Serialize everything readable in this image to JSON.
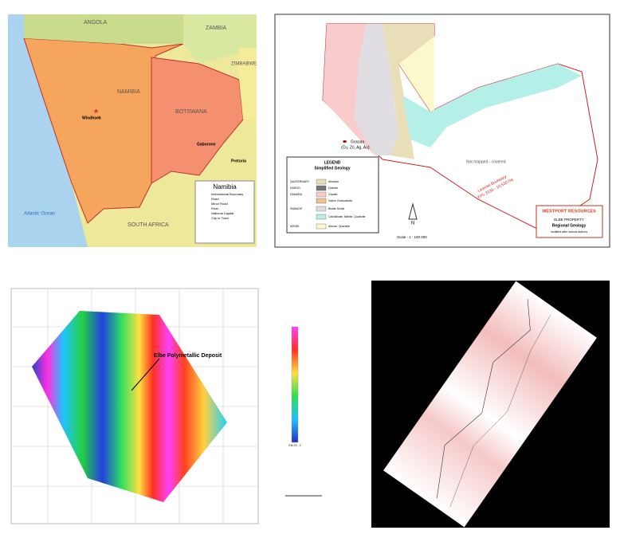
{
  "namibia_map": {
    "countries": [
      "ANGOLA",
      "ZAMBIA",
      "ZIMBABWE",
      "NAMIBIA",
      "BOTSWANA",
      "SOUTH AFRICA"
    ],
    "ocean": "Atlantic Ocean",
    "cities": [
      "Windhoek",
      "Gaborone",
      "Pretoria"
    ],
    "legend": {
      "title": "Namibia",
      "items": [
        "International Boundary",
        "Road",
        "Minor Road",
        "River",
        "National Capital",
        "City or Town"
      ]
    }
  },
  "geology_map": {
    "legend": {
      "title": "LEGEND",
      "subtitle": "Simplified Geology",
      "eras": [
        "QUATERNARY",
        "KAROO",
        "DAMARA",
        "SWAKOP",
        "NOSIB"
      ],
      "units": [
        "Alluvium",
        "Dolerite",
        "Granite",
        "Salem Granodiorite",
        "Biotite Schist",
        "Calcsilicate, Marble, Quartzite",
        "Arkose, Quartzite"
      ]
    },
    "gossan": "Gossan",
    "gossan_metals": "(Cu, Zn, Ag, Au)",
    "uncovered_note": "Not mapped - covered",
    "boundary_label": "License Boundary",
    "boundary_area": "EPL 3136 - 10,530 Ha",
    "north": "N",
    "scale": "Scale - 1 : 100 000",
    "title_block": {
      "company": "WESTPORT RESOURCES",
      "property": "ELBE PROPERTY",
      "subject": "Regional Geology",
      "credit": "modified after various Authors"
    }
  },
  "em_map": {
    "annotation": "Elbe Polymetallic Deposit",
    "colorbar_label": "EM 23 - 2"
  }
}
